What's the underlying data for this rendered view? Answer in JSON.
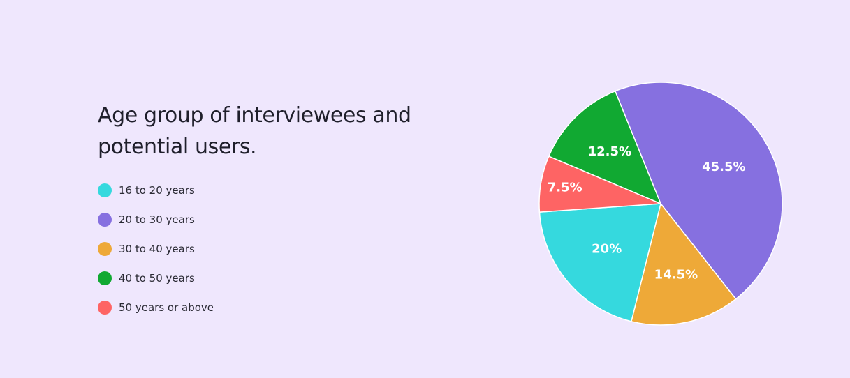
{
  "chart_data": {
    "type": "pie",
    "title": "Age group of interviewees and potential users.",
    "categories": [
      "16 to 20 years",
      "20 to 30 years",
      "30 to 40 years",
      "40 to 50 years",
      "50 years or above"
    ],
    "values": [
      20,
      45.5,
      14.5,
      12.5,
      7.5
    ],
    "value_labels": [
      "20%",
      "45.5%",
      "14.5%",
      "12.5%",
      "7.5%"
    ],
    "colors": [
      "#35d9de",
      "#8670e0",
      "#eea938",
      "#11a932",
      "#fe6464"
    ],
    "legend_position": "left"
  }
}
